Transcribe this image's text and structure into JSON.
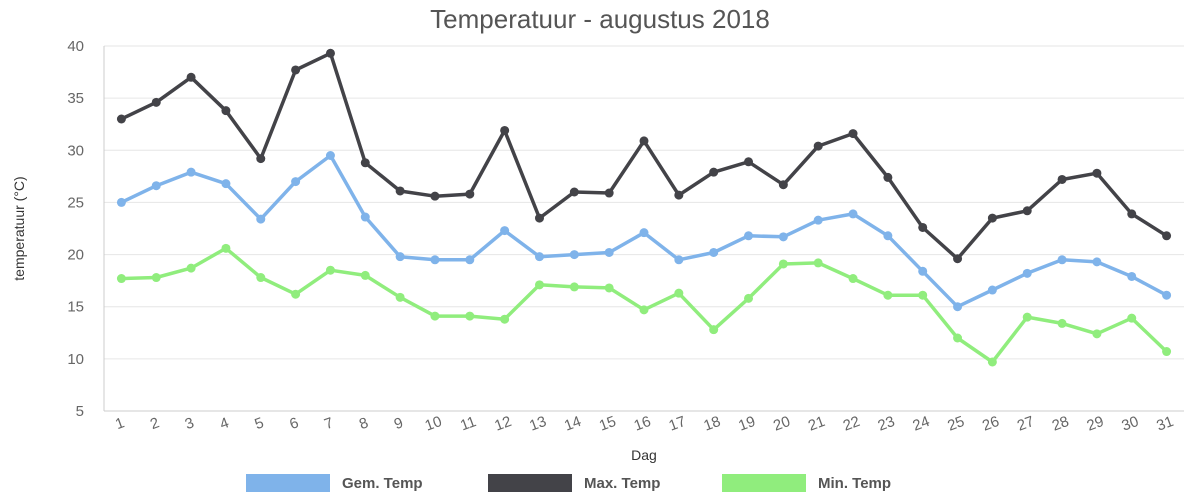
{
  "chart_data": {
    "type": "line",
    "title": "Temperatuur - augustus 2018",
    "xlabel": "Dag",
    "ylabel": "temperatuur (°C)",
    "ylim": [
      5,
      40
    ],
    "yticks": [
      5,
      10,
      15,
      20,
      25,
      30,
      35,
      40
    ],
    "grid": true,
    "legend_position": "bottom",
    "categories": [
      "1",
      "2",
      "3",
      "4",
      "5",
      "6",
      "7",
      "8",
      "9",
      "10",
      "11",
      "12",
      "13",
      "14",
      "15",
      "16",
      "17",
      "18",
      "19",
      "20",
      "21",
      "22",
      "23",
      "24",
      "25",
      "26",
      "27",
      "28",
      "29",
      "30",
      "31"
    ],
    "series": [
      {
        "name": "Gem. Temp",
        "color": "#7fb3ea",
        "values": [
          25.0,
          26.6,
          27.9,
          26.8,
          23.4,
          27.0,
          29.5,
          23.6,
          19.8,
          19.5,
          19.5,
          22.3,
          19.8,
          20.0,
          20.2,
          22.1,
          19.5,
          20.2,
          21.8,
          21.7,
          23.3,
          23.9,
          21.8,
          18.4,
          15.0,
          16.6,
          18.2,
          19.5,
          19.3,
          17.9,
          16.1
        ]
      },
      {
        "name": "Max. Temp",
        "color": "#434348",
        "values": [
          33.0,
          34.6,
          37.0,
          33.8,
          29.2,
          37.7,
          39.3,
          28.8,
          26.1,
          25.6,
          25.8,
          31.9,
          23.5,
          26.0,
          25.9,
          30.9,
          25.7,
          27.9,
          28.9,
          26.7,
          30.4,
          31.6,
          27.4,
          22.6,
          19.6,
          23.5,
          24.2,
          27.2,
          27.8,
          23.9,
          21.8
        ]
      },
      {
        "name": "Min. Temp",
        "color": "#90ed7d",
        "values": [
          17.7,
          17.8,
          18.7,
          20.6,
          17.8,
          16.2,
          18.5,
          18.0,
          15.9,
          14.1,
          14.1,
          13.8,
          17.1,
          16.9,
          16.8,
          14.7,
          16.3,
          12.8,
          15.8,
          19.1,
          19.2,
          17.7,
          16.1,
          16.1,
          12.0,
          9.7,
          14.0,
          13.4,
          12.4,
          13.9,
          10.7
        ]
      }
    ]
  }
}
